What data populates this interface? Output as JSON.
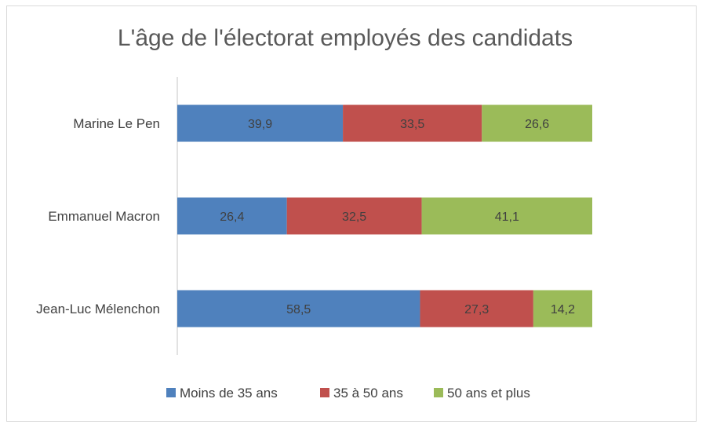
{
  "chart_data": {
    "type": "bar",
    "orientation": "horizontal",
    "stacked": true,
    "title": "L'âge de l'électorat employés des candidats",
    "categories": [
      "Marine Le Pen",
      "Emmanuel Macron",
      "Jean-Luc Mélenchon"
    ],
    "series": [
      {
        "name": "Moins de 35 ans",
        "color": "#4f81bd",
        "values": [
          39.9,
          26.4,
          58.5
        ],
        "labels": [
          "39,9",
          "26,4",
          "58,5"
        ]
      },
      {
        "name": "35 à 50 ans",
        "color": "#c0504d",
        "values": [
          33.5,
          32.5,
          27.3
        ],
        "labels": [
          "33,5",
          "32,5",
          "27,3"
        ]
      },
      {
        "name": "50 ans et plus",
        "color": "#9bbb59",
        "values": [
          26.6,
          41.1,
          14.2
        ],
        "labels": [
          "26,6",
          "41,1",
          "14,2"
        ]
      }
    ],
    "xlim": [
      0,
      100
    ],
    "grid": false,
    "legend_position": "bottom"
  }
}
